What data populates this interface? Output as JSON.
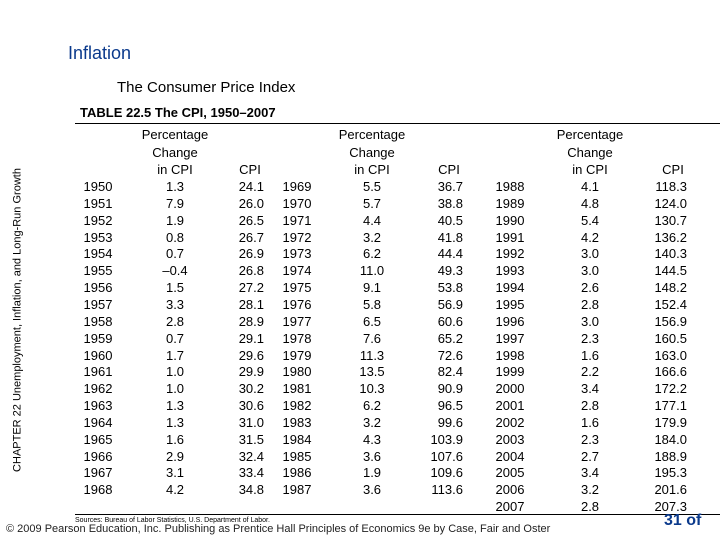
{
  "header": {
    "title": "Inflation",
    "subtitle": "The Consumer Price Index",
    "side_label": "CHAPTER 22  Unemployment, Inflation, and Long-Run Growth"
  },
  "table": {
    "title": "TABLE 22.5  The CPI, 1950–2007",
    "column_headers": {
      "change": [
        "Percentage",
        "Change",
        "in CPI"
      ],
      "cpi": "CPI"
    },
    "groups": [
      {
        "rows": [
          [
            "1950",
            "1.3",
            "24.1"
          ],
          [
            "1951",
            "7.9",
            "26.0"
          ],
          [
            "1952",
            "1.9",
            "26.5"
          ],
          [
            "1953",
            "0.8",
            "26.7"
          ],
          [
            "1954",
            "0.7",
            "26.9"
          ],
          [
            "1955",
            "–0.4",
            "26.8"
          ],
          [
            "1956",
            "1.5",
            "27.2"
          ],
          [
            "1957",
            "3.3",
            "28.1"
          ],
          [
            "1958",
            "2.8",
            "28.9"
          ],
          [
            "1959",
            "0.7",
            "29.1"
          ],
          [
            "1960",
            "1.7",
            "29.6"
          ],
          [
            "1961",
            "1.0",
            "29.9"
          ],
          [
            "1962",
            "1.0",
            "30.2"
          ],
          [
            "1963",
            "1.3",
            "30.6"
          ],
          [
            "1964",
            "1.3",
            "31.0"
          ],
          [
            "1965",
            "1.6",
            "31.5"
          ],
          [
            "1966",
            "2.9",
            "32.4"
          ],
          [
            "1967",
            "3.1",
            "33.4"
          ],
          [
            "1968",
            "4.2",
            "34.8"
          ]
        ]
      },
      {
        "rows": [
          [
            "1969",
            "5.5",
            "36.7"
          ],
          [
            "1970",
            "5.7",
            "38.8"
          ],
          [
            "1971",
            "4.4",
            "40.5"
          ],
          [
            "1972",
            "3.2",
            "41.8"
          ],
          [
            "1973",
            "6.2",
            "44.4"
          ],
          [
            "1974",
            "11.0",
            "49.3"
          ],
          [
            "1975",
            "9.1",
            "53.8"
          ],
          [
            "1976",
            "5.8",
            "56.9"
          ],
          [
            "1977",
            "6.5",
            "60.6"
          ],
          [
            "1978",
            "7.6",
            "65.2"
          ],
          [
            "1979",
            "11.3",
            "72.6"
          ],
          [
            "1980",
            "13.5",
            "82.4"
          ],
          [
            "1981",
            "10.3",
            "90.9"
          ],
          [
            "1982",
            "6.2",
            "96.5"
          ],
          [
            "1983",
            "3.2",
            "99.6"
          ],
          [
            "1984",
            "4.3",
            "103.9"
          ],
          [
            "1985",
            "3.6",
            "107.6"
          ],
          [
            "1986",
            "1.9",
            "109.6"
          ],
          [
            "1987",
            "3.6",
            "113.6"
          ]
        ]
      },
      {
        "rows": [
          [
            "1988",
            "4.1",
            "118.3"
          ],
          [
            "1989",
            "4.8",
            "124.0"
          ],
          [
            "1990",
            "5.4",
            "130.7"
          ],
          [
            "1991",
            "4.2",
            "136.2"
          ],
          [
            "1992",
            "3.0",
            "140.3"
          ],
          [
            "1993",
            "3.0",
            "144.5"
          ],
          [
            "1994",
            "2.6",
            "148.2"
          ],
          [
            "1995",
            "2.8",
            "152.4"
          ],
          [
            "1996",
            "3.0",
            "156.9"
          ],
          [
            "1997",
            "2.3",
            "160.5"
          ],
          [
            "1998",
            "1.6",
            "163.0"
          ],
          [
            "1999",
            "2.2",
            "166.6"
          ],
          [
            "2000",
            "3.4",
            "172.2"
          ],
          [
            "2001",
            "2.8",
            "177.1"
          ],
          [
            "2002",
            "1.6",
            "179.9"
          ],
          [
            "2003",
            "2.3",
            "184.0"
          ],
          [
            "2004",
            "2.7",
            "188.9"
          ],
          [
            "2005",
            "3.4",
            "195.3"
          ],
          [
            "2006",
            "3.2",
            "201.6"
          ],
          [
            "2007",
            "2.8",
            "207.3"
          ]
        ]
      }
    ],
    "source": "Sources: Bureau of Labor Statistics, U.S. Department of Labor."
  },
  "footer": {
    "copyright": "© 2009 Pearson Education, Inc. Publishing as Prentice Hall   Principles of Economics 9e by Case, Fair and Oster",
    "page": "31 of"
  }
}
